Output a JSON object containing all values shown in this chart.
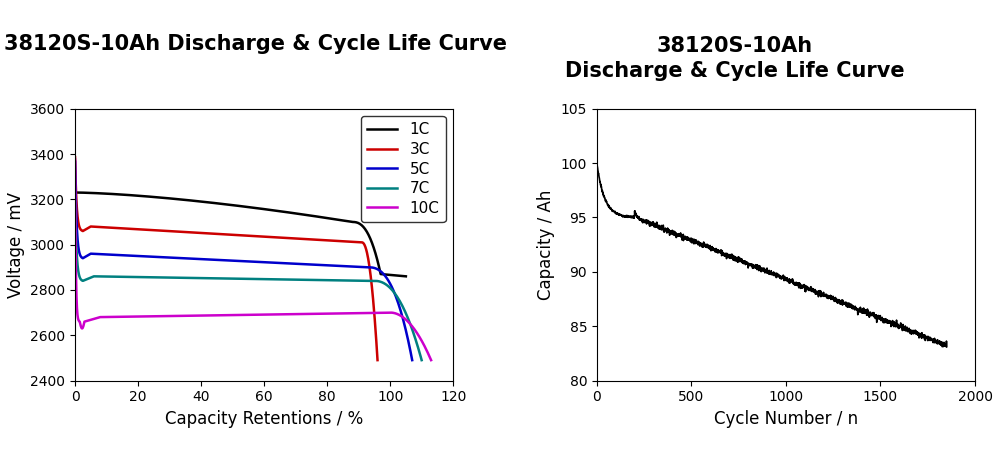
{
  "title_left": "38120S-10Ah Discharge & Cycle Life Curve",
  "title_right_line1": "38120S-10Ah",
  "title_right_line2": "Discharge & Cycle Life Curve",
  "left": {
    "xlabel": "Capacity Retentions / %",
    "ylabel": "Voltage / mV",
    "xlim": [
      0,
      120
    ],
    "ylim": [
      2400,
      3600
    ],
    "xticks": [
      0,
      20,
      40,
      60,
      80,
      100,
      120
    ],
    "yticks": [
      2400,
      2600,
      2800,
      3000,
      3200,
      3400,
      3600
    ],
    "curves": [
      {
        "label": "1C",
        "color": "#000000"
      },
      {
        "label": "3C",
        "color": "#cc0000"
      },
      {
        "label": "5C",
        "color": "#0000cc"
      },
      {
        "label": "7C",
        "color": "#008080"
      },
      {
        "label": "10C",
        "color": "#cc00cc"
      }
    ]
  },
  "right": {
    "xlabel": "Cycle Number / n",
    "ylabel": "Capacity / Ah",
    "xlim": [
      0,
      2000
    ],
    "ylim": [
      80,
      105
    ],
    "xticks": [
      0,
      500,
      1000,
      1500,
      2000
    ],
    "yticks": [
      80,
      85,
      90,
      95,
      100,
      105
    ]
  },
  "background_color": "#ffffff",
  "title_fontsize": 15,
  "axis_label_fontsize": 12,
  "tick_fontsize": 10,
  "legend_fontsize": 11,
  "linewidth": 1.8
}
